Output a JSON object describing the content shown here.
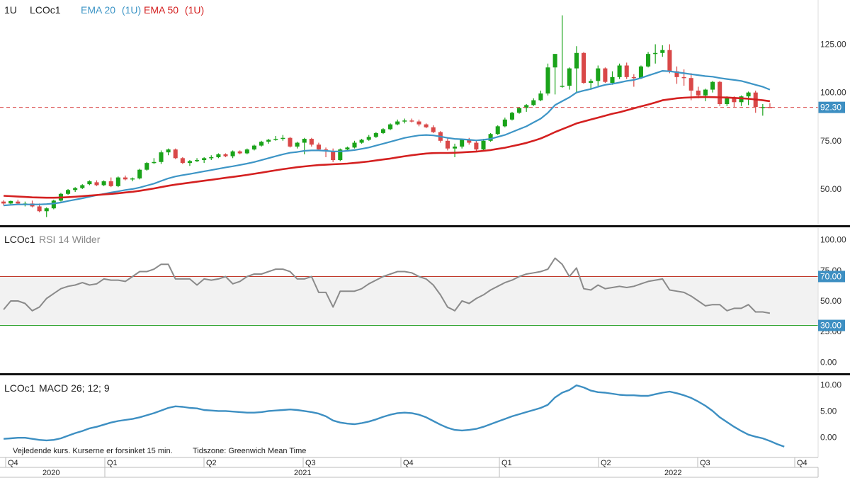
{
  "header": {
    "interval": "1U",
    "symbol": "LCOc1"
  },
  "colors": {
    "up": "#1aa31a",
    "down": "#d94848",
    "ema20": "#3d95c6",
    "ema50": "#d42020",
    "rsi": "#8a8a8a",
    "macd": "#3d8fc2",
    "sep": "#111111",
    "refline": "#d94848"
  },
  "chart_data": [
    {
      "type": "candlestick",
      "panel": "price",
      "symbol": "LCOc1",
      "interval": "1U",
      "legend": [
        {
          "name": "EMA 20",
          "suffix": "(1U)"
        },
        {
          "name": "EMA 50",
          "suffix": "(1U)"
        }
      ],
      "yticks": [
        50,
        75,
        100,
        125
      ],
      "ytick_labels": [
        "50.00",
        "75.00",
        "100.00",
        "125.00"
      ],
      "ylim": [
        32,
        145
      ],
      "last_price": 92.3,
      "last_price_label": "92.30",
      "candles": [
        [
          43.5,
          44.2,
          41.5,
          42.5
        ],
        [
          42.5,
          44.0,
          41.8,
          43.8
        ],
        [
          43.5,
          44.5,
          42.0,
          42.5
        ],
        [
          42.0,
          43.5,
          41.0,
          42.5
        ],
        [
          42.5,
          44.0,
          40.5,
          41.0
        ],
        [
          41.0,
          42.5,
          38.0,
          38.5
        ],
        [
          38.5,
          40.5,
          35.5,
          40.0
        ],
        [
          40.0,
          44.5,
          39.5,
          44.0
        ],
        [
          44.0,
          48.0,
          43.5,
          47.5
        ],
        [
          47.5,
          50.0,
          47.0,
          49.5
        ],
        [
          49.5,
          51.0,
          48.5,
          50.5
        ],
        [
          50.5,
          52.5,
          50.0,
          52.0
        ],
        [
          52.5,
          54.5,
          52.0,
          54.0
        ],
        [
          53.5,
          54.5,
          51.5,
          52.0
        ],
        [
          52.0,
          54.5,
          51.5,
          54.0
        ],
        [
          54.0,
          56.0,
          51.0,
          51.5
        ],
        [
          51.5,
          56.5,
          51.0,
          56.0
        ],
        [
          56.0,
          57.0,
          54.5,
          55.0
        ],
        [
          55.0,
          56.0,
          54.0,
          55.5
        ],
        [
          55.5,
          60.5,
          55.0,
          60.0
        ],
        [
          60.0,
          64.0,
          59.5,
          63.5
        ],
        [
          63.5,
          66.0,
          63.0,
          64.0
        ],
        [
          64.0,
          70.0,
          63.0,
          69.0
        ],
        [
          69.0,
          71.0,
          67.5,
          70.5
        ],
        [
          70.5,
          71.0,
          65.5,
          66.0
        ],
        [
          66.0,
          66.5,
          63.0,
          63.5
        ],
        [
          63.5,
          65.0,
          62.0,
          64.5
        ],
        [
          64.5,
          66.0,
          64.0,
          65.0
        ],
        [
          65.0,
          66.5,
          63.5,
          66.0
        ],
        [
          66.0,
          67.5,
          65.0,
          66.5
        ],
        [
          66.5,
          68.5,
          66.0,
          68.0
        ],
        [
          68.0,
          68.5,
          66.5,
          67.0
        ],
        [
          67.0,
          70.0,
          66.0,
          69.5
        ],
        [
          69.5,
          70.0,
          68.0,
          68.5
        ],
        [
          68.5,
          71.0,
          68.0,
          70.5
        ],
        [
          70.5,
          73.0,
          70.0,
          72.5
        ],
        [
          72.5,
          75.0,
          72.0,
          74.5
        ],
        [
          74.5,
          76.0,
          73.5,
          75.5
        ],
        [
          75.5,
          77.5,
          75.0,
          76.0
        ],
        [
          76.0,
          78.0,
          75.0,
          76.5
        ],
        [
          76.5,
          77.0,
          71.5,
          72.0
        ],
        [
          72.0,
          74.5,
          71.0,
          74.0
        ],
        [
          74.0,
          76.5,
          68.0,
          76.0
        ],
        [
          76.0,
          76.5,
          72.0,
          73.0
        ],
        [
          73.0,
          74.0,
          70.0,
          70.5
        ],
        [
          70.5,
          71.5,
          66.5,
          69.5
        ],
        [
          69.5,
          71.0,
          64.0,
          65.0
        ],
        [
          65.0,
          71.0,
          64.5,
          70.5
        ],
        [
          70.5,
          72.0,
          70.0,
          71.5
        ],
        [
          71.5,
          75.0,
          71.0,
          74.0
        ],
        [
          74.0,
          76.0,
          73.5,
          75.5
        ],
        [
          75.5,
          78.0,
          75.0,
          77.0
        ],
        [
          77.0,
          79.5,
          76.5,
          79.0
        ],
        [
          79.0,
          81.5,
          78.5,
          81.0
        ],
        [
          81.0,
          84.0,
          80.5,
          83.5
        ],
        [
          83.5,
          86.0,
          83.0,
          85.0
        ],
        [
          85.0,
          86.5,
          84.0,
          85.5
        ],
        [
          85.5,
          86.5,
          84.5,
          85.0
        ],
        [
          85.0,
          86.0,
          82.5,
          83.5
        ],
        [
          83.5,
          84.0,
          81.5,
          82.0
        ],
        [
          82.0,
          83.0,
          79.0,
          79.5
        ],
        [
          79.5,
          80.0,
          74.0,
          75.0
        ],
        [
          75.0,
          76.5,
          70.0,
          71.0
        ],
        [
          71.0,
          73.5,
          66.5,
          72.0
        ],
        [
          72.0,
          76.0,
          71.0,
          75.5
        ],
        [
          75.5,
          76.5,
          73.0,
          74.0
        ],
        [
          74.0,
          75.5,
          69.5,
          70.5
        ],
        [
          70.5,
          76.0,
          70.0,
          75.0
        ],
        [
          75.0,
          79.0,
          74.5,
          78.5
        ],
        [
          78.5,
          83.0,
          78.0,
          82.5
        ],
        [
          82.5,
          87.0,
          82.0,
          86.0
        ],
        [
          86.0,
          90.0,
          85.5,
          89.5
        ],
        [
          89.5,
          92.5,
          89.0,
          92.0
        ],
        [
          92.0,
          94.0,
          90.0,
          93.5
        ],
        [
          93.5,
          97.0,
          93.0,
          96.0
        ],
        [
          96.0,
          101.0,
          95.5,
          99.5
        ],
        [
          99.5,
          115.0,
          98.5,
          113.0
        ],
        [
          113.0,
          119.0,
          99.0,
          120.0
        ],
        [
          103.0,
          140.0,
          102.5,
          103.5
        ],
        [
          103.5,
          113.0,
          101.5,
          112.5
        ],
        [
          112.5,
          124.0,
          100.0,
          120.5
        ],
        [
          120.5,
          121.0,
          104.5,
          105.0
        ],
        [
          105.0,
          107.0,
          101.5,
          106.0
        ],
        [
          106.0,
          114.0,
          103.5,
          112.5
        ],
        [
          112.5,
          113.0,
          105.0,
          105.5
        ],
        [
          105.0,
          111.0,
          104.0,
          108.0
        ],
        [
          108.0,
          115.0,
          107.0,
          114.0
        ],
        [
          114.0,
          115.5,
          107.0,
          108.0
        ],
        [
          108.0,
          109.5,
          103.0,
          107.5
        ],
        [
          107.5,
          114.0,
          107.0,
          113.5
        ],
        [
          113.5,
          121.0,
          113.0,
          120.0
        ],
        [
          120.0,
          125.0,
          115.0,
          120.5
        ],
        [
          120.5,
          124.5,
          118.5,
          122.0
        ],
        [
          122.0,
          125.0,
          110.0,
          111.0
        ],
        [
          111.0,
          113.5,
          104.5,
          108.0
        ],
        [
          108.0,
          112.0,
          103.5,
          107.5
        ],
        [
          107.5,
          110.0,
          96.0,
          101.0
        ],
        [
          101.0,
          103.0,
          97.0,
          98.5
        ],
        [
          98.5,
          102.0,
          95.5,
          101.5
        ],
        [
          101.5,
          106.0,
          100.0,
          105.5
        ],
        [
          105.5,
          106.0,
          93.0,
          94.0
        ],
        [
          94.0,
          98.0,
          93.0,
          97.0
        ],
        [
          97.0,
          98.0,
          92.5,
          95.0
        ],
        [
          95.0,
          98.5,
          93.0,
          98.0
        ],
        [
          98.0,
          100.5,
          93.5,
          100.0
        ],
        [
          100.0,
          101.0,
          89.5,
          92.5
        ],
        [
          92.5,
          94.0,
          88.0,
          92.5
        ],
        [
          92.5,
          94.5,
          92.0,
          92.3
        ]
      ],
      "series": [
        {
          "name": "EMA 20",
          "values": [
            41.5,
            41.8,
            42.0,
            42.0,
            42.0,
            42.0,
            42.2,
            42.5,
            43.0,
            43.8,
            44.5,
            45.2,
            46.0,
            46.8,
            47.5,
            48.2,
            48.8,
            49.5,
            50.0,
            50.8,
            51.8,
            52.8,
            54.2,
            55.5,
            56.5,
            57.2,
            57.8,
            58.5,
            59.2,
            59.8,
            60.5,
            61.2,
            61.8,
            62.5,
            63.2,
            64.0,
            65.0,
            66.0,
            67.0,
            68.0,
            68.8,
            69.2,
            69.8,
            70.0,
            70.0,
            69.8,
            69.5,
            69.5,
            69.8,
            70.2,
            70.8,
            71.5,
            72.5,
            73.5,
            74.5,
            75.5,
            76.5,
            77.2,
            77.8,
            78.0,
            77.8,
            77.2,
            76.5,
            76.0,
            75.8,
            75.5,
            75.2,
            75.5,
            76.0,
            77.0,
            78.0,
            79.5,
            81.0,
            82.5,
            84.5,
            86.5,
            89.5,
            93.5,
            95.5,
            97.5,
            100.0,
            101.0,
            101.8,
            103.0,
            104.0,
            104.5,
            105.2,
            106.0,
            106.5,
            107.5,
            108.8,
            110.0,
            111.2,
            111.0,
            110.5,
            110.0,
            109.5,
            109.0,
            108.5,
            108.2,
            107.5,
            107.0,
            106.5,
            106.0,
            105.0,
            104.0,
            103.0,
            101.5
          ]
        },
        {
          "name": "EMA 50",
          "values": [
            46.5,
            46.3,
            46.1,
            45.9,
            45.7,
            45.6,
            45.5,
            45.5,
            45.6,
            45.8,
            46.0,
            46.3,
            46.6,
            46.9,
            47.2,
            47.5,
            47.8,
            48.2,
            48.6,
            49.1,
            49.7,
            50.3,
            51.0,
            51.7,
            52.3,
            52.8,
            53.3,
            53.8,
            54.3,
            54.8,
            55.3,
            55.8,
            56.3,
            56.8,
            57.3,
            57.9,
            58.5,
            59.1,
            59.7,
            60.3,
            60.8,
            61.3,
            61.7,
            62.1,
            62.4,
            62.6,
            62.8,
            63.0,
            63.2,
            63.5,
            63.9,
            64.3,
            64.8,
            65.3,
            65.8,
            66.4,
            67.0,
            67.5,
            68.0,
            68.4,
            68.6,
            68.7,
            68.7,
            68.8,
            69.0,
            69.2,
            69.4,
            69.8,
            70.2,
            70.8,
            71.4,
            72.2,
            73.0,
            73.9,
            75.0,
            76.2,
            77.8,
            79.5,
            81.0,
            82.5,
            84.0,
            85.0,
            86.0,
            87.0,
            88.0,
            89.0,
            89.8,
            90.8,
            91.8,
            92.8,
            93.8,
            94.8,
            96.0,
            96.5,
            97.0,
            97.3,
            97.5,
            97.6,
            97.7,
            97.6,
            97.5,
            97.4,
            97.2,
            97.0,
            96.8,
            96.4,
            96.0,
            95.5
          ]
        }
      ]
    },
    {
      "type": "line",
      "panel": "rsi",
      "symbol": "LCOc1",
      "title": "RSI 14 Wilder",
      "yticks": [
        0,
        25,
        50,
        75,
        100
      ],
      "ytick_labels": [
        "0.00",
        "25.00",
        "50.00",
        "75.00",
        "100.00"
      ],
      "ylim": [
        -5,
        105
      ],
      "bands": {
        "upper": 70,
        "lower": 30,
        "upper_label": "70.00",
        "lower_label": "30.00"
      },
      "values": [
        43,
        50,
        50,
        48,
        42,
        45,
        52,
        56,
        60,
        62,
        63,
        65,
        63,
        64,
        68,
        67,
        67,
        66,
        70,
        74,
        74,
        76,
        80,
        80,
        68,
        68,
        68,
        63,
        68,
        67,
        68,
        70,
        64,
        66,
        70,
        72,
        72,
        74,
        76,
        76,
        74,
        68,
        68,
        70,
        57,
        57,
        45,
        58,
        58,
        58,
        60,
        64,
        67,
        70,
        72,
        74,
        74,
        73,
        70,
        68,
        63,
        55,
        45,
        42,
        50,
        48,
        52,
        55,
        59,
        62,
        65,
        67,
        70,
        72,
        73,
        74,
        76,
        85,
        80,
        70,
        77,
        60,
        59,
        63,
        60,
        61,
        62,
        61,
        62,
        64,
        66,
        67,
        68,
        59,
        58,
        57,
        54,
        50,
        46,
        47,
        47,
        42,
        44,
        44,
        47,
        41,
        41,
        40
      ]
    },
    {
      "type": "line",
      "panel": "macd",
      "symbol": "LCOc1",
      "title": "MACD 26; 12; 9",
      "yticks": [
        0,
        5,
        10
      ],
      "ytick_labels": [
        "0.00",
        "5.00",
        "10.00"
      ],
      "ylim": [
        -2.5,
        11
      ],
      "values": [
        -0.3,
        -0.2,
        -0.1,
        -0.1,
        -0.3,
        -0.5,
        -0.6,
        -0.5,
        -0.2,
        0.3,
        0.8,
        1.2,
        1.7,
        2.0,
        2.4,
        2.8,
        3.1,
        3.3,
        3.5,
        3.8,
        4.2,
        4.6,
        5.1,
        5.6,
        5.9,
        5.8,
        5.6,
        5.5,
        5.2,
        5.1,
        5.0,
        5.0,
        4.9,
        4.8,
        4.7,
        4.7,
        4.8,
        5.0,
        5.1,
        5.2,
        5.3,
        5.2,
        5.0,
        4.8,
        4.5,
        4.0,
        3.2,
        2.8,
        2.6,
        2.5,
        2.7,
        3.0,
        3.4,
        3.9,
        4.3,
        4.6,
        4.7,
        4.6,
        4.3,
        3.8,
        3.1,
        2.4,
        1.8,
        1.4,
        1.3,
        1.4,
        1.6,
        2.0,
        2.5,
        3.0,
        3.5,
        4.0,
        4.4,
        4.8,
        5.2,
        5.6,
        6.2,
        7.6,
        8.5,
        9.0,
        9.9,
        9.5,
        8.9,
        8.6,
        8.5,
        8.3,
        8.1,
        8.0,
        8.0,
        7.9,
        7.9,
        8.2,
        8.5,
        8.7,
        8.4,
        8.0,
        7.5,
        6.8,
        6.0,
        5.0,
        3.8,
        2.9,
        2.0,
        1.2,
        0.5,
        0.1,
        -0.2,
        -0.7,
        -1.3,
        -1.8
      ]
    }
  ],
  "footer": {
    "note_left": "Vejledende kurs. Kurserne er forsinket 15 min.",
    "note_right": "Tidszone: Greenwich Mean Time",
    "quarters": [
      "Q4",
      "Q1",
      "Q2",
      "Q3",
      "Q4",
      "Q1",
      "Q2",
      "Q3",
      "Q4"
    ],
    "years": [
      "2020",
      "2021",
      "2022"
    ]
  }
}
